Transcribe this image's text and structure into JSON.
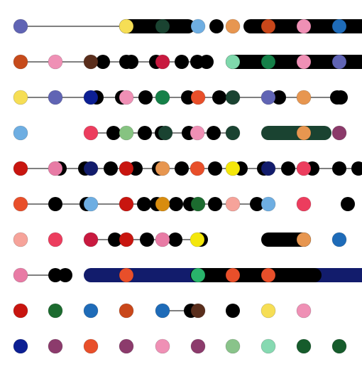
{
  "palette": {
    "black": "#000000",
    "periwinkle": "#6064b4",
    "yellow": "#f6de55",
    "darkgreen": "#1a4331",
    "skyblue": "#6eaee2",
    "orange": "#e79650",
    "rust": "#c9471a",
    "pink": "#ef90b5",
    "blue": "#1e6bb8",
    "sienna": "#c64b1b",
    "brown": "#5a2e1c",
    "crimson": "#c8193f",
    "mint": "#7fd8ac",
    "green": "#158048",
    "navy": "#0c1f93",
    "red": "#e84f2a",
    "rose": "#ec3d5e",
    "sage": "#86c381",
    "plum": "#8b3a6a",
    "scarlet": "#c8150f",
    "midnight": "#121c6c",
    "brightyellow": "#f4e70b",
    "amber": "#d88c0e",
    "salmon": "#f6a39a",
    "forest": "#1c6b2f",
    "hotpink": "#e87ba5",
    "jade": "#29b46b",
    "mauve": "#8c3b6c",
    "lightsage": "#89c38a",
    "seafoam": "#86d9b1",
    "pinegreen": "#165c2c"
  },
  "rows": [
    {
      "lines": [
        [
          29,
          178
        ]
      ],
      "bars": [
        [
          178,
          265,
          "black"
        ],
        [
          353,
          510,
          "black"
        ]
      ],
      "dots": [
        [
          29,
          "periwinkle"
        ],
        [
          178,
          "yellow"
        ],
        [
          229,
          "darkgreen"
        ],
        [
          279,
          "skyblue"
        ],
        [
          305,
          "black"
        ],
        [
          328,
          "orange"
        ],
        [
          356,
          "black"
        ],
        [
          378,
          "rust"
        ],
        [
          408,
          "black"
        ],
        [
          428,
          "pink"
        ],
        [
          446,
          "black"
        ],
        [
          465,
          "black"
        ],
        [
          478,
          "blue"
        ],
        [
          505,
          "black"
        ]
      ]
    },
    {
      "lines": [
        [
          29,
          145
        ],
        [
          145,
          230
        ],
        [
          230,
          292
        ]
      ],
      "bars": [
        [
          328,
          510,
          "black"
        ]
      ],
      "dots": [
        [
          29,
          "sienna"
        ],
        [
          78,
          "pink"
        ],
        [
          128,
          "brown"
        ],
        [
          145,
          "black"
        ],
        [
          178,
          "black"
        ],
        [
          185,
          "black"
        ],
        [
          220,
          "black"
        ],
        [
          229,
          "crimson"
        ],
        [
          256,
          "black"
        ],
        [
          278,
          "black"
        ],
        [
          291,
          "black"
        ],
        [
          328,
          "mint"
        ],
        [
          378,
          "green"
        ],
        [
          428,
          "pink"
        ],
        [
          478,
          "periwinkle"
        ]
      ]
    },
    {
      "lines": [
        [
          29,
          135
        ],
        [
          135,
          278
        ],
        [
          278,
          430
        ],
        [
          430,
          478
        ]
      ],
      "bars": [],
      "dots": [
        [
          29,
          "yellow"
        ],
        [
          78,
          "periwinkle"
        ],
        [
          128,
          "navy"
        ],
        [
          136,
          "black"
        ],
        [
          172,
          "black"
        ],
        [
          178,
          "pink"
        ],
        [
          205,
          "black"
        ],
        [
          229,
          "green"
        ],
        [
          265,
          "black"
        ],
        [
          279,
          "red"
        ],
        [
          309,
          "black"
        ],
        [
          328,
          "darkgreen"
        ],
        [
          378,
          "periwinkle"
        ],
        [
          393,
          "black"
        ],
        [
          428,
          "orange"
        ],
        [
          475,
          "black"
        ],
        [
          480,
          "black"
        ]
      ]
    },
    {
      "lines": [
        [
          128,
          328
        ]
      ],
      "bars": [
        [
          378,
          457,
          "darkgreen"
        ]
      ],
      "dots": [
        [
          29,
          "skyblue"
        ],
        [
          128,
          "rose"
        ],
        [
          160,
          "black"
        ],
        [
          178,
          "sage"
        ],
        [
          204,
          "black"
        ],
        [
          228,
          "black"
        ],
        [
          233,
          "darkgreen"
        ],
        [
          266,
          "black"
        ],
        [
          278,
          "pink"
        ],
        [
          301,
          "black"
        ],
        [
          328,
          "darkgreen"
        ],
        [
          428,
          "orange"
        ],
        [
          478,
          "plum"
        ]
      ]
    },
    {
      "lines": [
        [
          29,
          505
        ]
      ],
      "bars": [],
      "dots": [
        [
          29,
          "scarlet"
        ],
        [
          78,
          "hotpink"
        ],
        [
          84,
          "black"
        ],
        [
          120,
          "black"
        ],
        [
          128,
          "midnight"
        ],
        [
          156,
          "black"
        ],
        [
          178,
          "scarlet"
        ],
        [
          191,
          "black"
        ],
        [
          224,
          "black"
        ],
        [
          229,
          "orange"
        ],
        [
          256,
          "black"
        ],
        [
          278,
          "red"
        ],
        [
          303,
          "black"
        ],
        [
          328,
          "brightyellow"
        ],
        [
          339,
          "black"
        ],
        [
          372,
          "black"
        ],
        [
          378,
          "midnight"
        ],
        [
          406,
          "black"
        ],
        [
          428,
          "rose"
        ],
        [
          440,
          "black"
        ],
        [
          478,
          "black"
        ],
        [
          505,
          "black"
        ]
      ]
    },
    {
      "lines": [
        [
          29,
          378
        ]
      ],
      "bars": [],
      "dots": [
        [
          29,
          "red"
        ],
        [
          78,
          "black"
        ],
        [
          122,
          "black"
        ],
        [
          128,
          "skyblue"
        ],
        [
          178,
          "scarlet"
        ],
        [
          203,
          "black"
        ],
        [
          221,
          "black"
        ],
        [
          229,
          "amber"
        ],
        [
          248,
          "black"
        ],
        [
          268,
          "black"
        ],
        [
          279,
          "forest"
        ],
        [
          303,
          "black"
        ],
        [
          328,
          "salmon"
        ],
        [
          362,
          "black"
        ],
        [
          378,
          "skyblue"
        ],
        [
          428,
          "rose"
        ],
        [
          490,
          "black"
        ]
      ]
    },
    {
      "lines": [
        [
          128,
          280
        ]
      ],
      "bars": [
        [
          378,
          428,
          "black"
        ]
      ],
      "dots": [
        [
          29,
          "salmon"
        ],
        [
          78,
          "rose"
        ],
        [
          128,
          "crimson"
        ],
        [
          162,
          "black"
        ],
        [
          178,
          "scarlet"
        ],
        [
          207,
          "black"
        ],
        [
          229,
          "hotpink"
        ],
        [
          247,
          "black"
        ],
        [
          278,
          "brightyellow"
        ],
        [
          283,
          "black"
        ],
        [
          428,
          "orange"
        ],
        [
          478,
          "blue"
        ]
      ]
    },
    {
      "lines": [
        [
          29,
          92
        ]
      ],
      "bars": [
        [
          128,
          510,
          "midnight"
        ],
        [
          278,
          443,
          "black"
        ]
      ],
      "dots": [
        [
          29,
          "hotpink"
        ],
        [
          78,
          "black"
        ],
        [
          92,
          "black"
        ],
        [
          178,
          "red"
        ],
        [
          279,
          "jade"
        ],
        [
          328,
          "red"
        ],
        [
          378,
          "red"
        ]
      ]
    },
    {
      "lines": [
        [
          229,
          278
        ]
      ],
      "bars": [],
      "dots": [
        [
          29,
          "scarlet"
        ],
        [
          78,
          "forest"
        ],
        [
          128,
          "blue"
        ],
        [
          178,
          "rust"
        ],
        [
          229,
          "blue"
        ],
        [
          269,
          "black"
        ],
        [
          279,
          "brown"
        ],
        [
          328,
          "black"
        ],
        [
          378,
          "yellow"
        ],
        [
          428,
          "pink"
        ]
      ]
    },
    {
      "lines": [],
      "bars": [],
      "dots": [
        [
          29,
          "navy"
        ],
        [
          78,
          "mauve"
        ],
        [
          128,
          "red"
        ],
        [
          178,
          "mauve"
        ],
        [
          229,
          "pink"
        ],
        [
          279,
          "mauve"
        ],
        [
          328,
          "lightsage"
        ],
        [
          378,
          "seafoam"
        ],
        [
          428,
          "pinegreen"
        ],
        [
          478,
          "pinegreen"
        ]
      ]
    }
  ]
}
